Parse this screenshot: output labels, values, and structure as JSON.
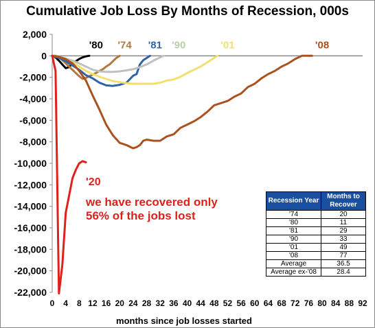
{
  "chart_data": {
    "type": "line",
    "title": "Cumulative Job Loss By Months of Recession, 000s",
    "xlabel": "months since job losses started",
    "ylabel": "",
    "xlim": [
      0,
      92
    ],
    "ylim": [
      -22000,
      2000
    ],
    "xticks": [
      0,
      4,
      8,
      12,
      16,
      20,
      24,
      28,
      32,
      36,
      40,
      44,
      48,
      52,
      56,
      60,
      64,
      68,
      72,
      76,
      80,
      84,
      88,
      92
    ],
    "yticks": [
      2000,
      0,
      -2000,
      -4000,
      -6000,
      -8000,
      -10000,
      -12000,
      -14000,
      -16000,
      -18000,
      -20000,
      -22000
    ],
    "ytick_labels": [
      "2,000",
      "0",
      "-2,000",
      "-4,000",
      "-6,000",
      "-8,000",
      "-10,000",
      "-12,000",
      "-14,000",
      "-16,000",
      "-18,000",
      "-20,000",
      "-22,000"
    ],
    "grid": false,
    "series": [
      {
        "name": "'80",
        "color": "#000000",
        "x": [
          0,
          1,
          2,
          3,
          4,
          5,
          6,
          7,
          8,
          9,
          10,
          11
        ],
        "y": [
          0,
          -150,
          -450,
          -800,
          -1150,
          -1050,
          -700,
          -500,
          -300,
          -150,
          -50,
          0
        ]
      },
      {
        "name": "'74",
        "color": "#b07a3e",
        "x": [
          0,
          1,
          2,
          3,
          4,
          5,
          6,
          7,
          8,
          9,
          10,
          11,
          12,
          13,
          14,
          15,
          16,
          17,
          18,
          19,
          20
        ],
        "y": [
          0,
          0,
          -100,
          -400,
          -700,
          -1000,
          -1300,
          -1600,
          -1900,
          -2150,
          -2050,
          -1900,
          -1750,
          -1600,
          -1400,
          -1250,
          -1000,
          -800,
          -500,
          -200,
          0
        ]
      },
      {
        "name": "'81",
        "color": "#2e63a8",
        "x": [
          0,
          2,
          4,
          6,
          8,
          10,
          12,
          14,
          16,
          18,
          20,
          22,
          24,
          25,
          26,
          27,
          28,
          29
        ],
        "y": [
          0,
          -200,
          -500,
          -900,
          -1300,
          -1800,
          -2100,
          -2500,
          -2750,
          -2800,
          -2700,
          -2500,
          -1850,
          -1700,
          -800,
          -400,
          -200,
          0
        ]
      },
      {
        "name": "'90",
        "color": "#c0c0c0",
        "x": [
          0,
          2,
          4,
          6,
          8,
          10,
          12,
          14,
          16,
          18,
          20,
          22,
          24,
          26,
          28,
          30,
          32,
          33
        ],
        "y": [
          0,
          -100,
          -250,
          -450,
          -700,
          -1000,
          -1300,
          -1450,
          -1500,
          -1500,
          -1450,
          -1350,
          -1250,
          -1050,
          -800,
          -450,
          -150,
          0
        ]
      },
      {
        "name": "'01",
        "color": "#f0e070",
        "x": [
          0,
          2,
          4,
          6,
          8,
          10,
          12,
          14,
          16,
          18,
          20,
          22,
          24,
          26,
          28,
          30,
          32,
          34,
          36,
          38,
          40,
          42,
          44,
          46,
          48,
          49
        ],
        "y": [
          0,
          -100,
          -300,
          -600,
          -1000,
          -1400,
          -1700,
          -1950,
          -2150,
          -2350,
          -2450,
          -2550,
          -2600,
          -2600,
          -2600,
          -2600,
          -2500,
          -2300,
          -2200,
          -1950,
          -1600,
          -1300,
          -1000,
          -600,
          -200,
          0
        ]
      },
      {
        "name": "'08",
        "color": "#a9521f",
        "x": [
          0,
          2,
          4,
          6,
          8,
          10,
          12,
          14,
          16,
          18,
          20,
          22,
          24,
          25,
          26,
          27,
          28,
          30,
          32,
          34,
          36,
          38,
          40,
          42,
          44,
          46,
          48,
          50,
          52,
          54,
          56,
          58,
          60,
          62,
          64,
          66,
          68,
          70,
          72,
          74,
          76,
          77
        ],
        "y": [
          0,
          -100,
          -300,
          -700,
          -1400,
          -2300,
          -3700,
          -5000,
          -6400,
          -7400,
          -8100,
          -8300,
          -8600,
          -8500,
          -8300,
          -7900,
          -7800,
          -7900,
          -7900,
          -7500,
          -7300,
          -6700,
          -6400,
          -6100,
          -5700,
          -5200,
          -4600,
          -4400,
          -4200,
          -3800,
          -3500,
          -2900,
          -2600,
          -2100,
          -1700,
          -1400,
          -1000,
          -700,
          -300,
          0,
          0,
          0
        ]
      },
      {
        "name": "'20",
        "color": "#e0201b",
        "x": [
          0,
          1,
          2,
          3,
          4,
          5,
          6,
          7,
          8,
          9,
          10
        ],
        "y": [
          0,
          -1400,
          -22100,
          -19500,
          -14600,
          -13000,
          -11400,
          -10600,
          -10000,
          -9800,
          -9900
        ]
      }
    ],
    "series_labels": [
      {
        "text": "'80",
        "color": "#000000",
        "x": 13,
        "y": 700
      },
      {
        "text": "'74",
        "color": "#b07a3e",
        "x": 21.5,
        "y": 700
      },
      {
        "text": "'81",
        "color": "#2e63a8",
        "x": 30.5,
        "y": 700
      },
      {
        "text": "'90",
        "color": "#b8cfa3",
        "x": 37.5,
        "y": 700
      },
      {
        "text": "'01",
        "color": "#f0e070",
        "x": 52,
        "y": 700
      },
      {
        "text": "'08",
        "color": "#a9521f",
        "x": 80,
        "y": 700
      }
    ],
    "annotations": [
      {
        "text": "'20",
        "color": "#e0201b"
      },
      {
        "text": "we have recovered only 56% of the jobs lost",
        "color": "#e0201b"
      }
    ],
    "table": {
      "header_bg": "#1a4fa0",
      "headers": [
        "Recession Year",
        "Months to Recover"
      ],
      "rows": [
        [
          "'74",
          "20"
        ],
        [
          "'80",
          "11"
        ],
        [
          "'81",
          "29"
        ],
        [
          "'90",
          "33"
        ],
        [
          "'01",
          "49"
        ],
        [
          "'08",
          "77"
        ],
        [
          "Average",
          "36.5"
        ],
        [
          "Average ex-'08",
          "28.4"
        ]
      ]
    }
  }
}
